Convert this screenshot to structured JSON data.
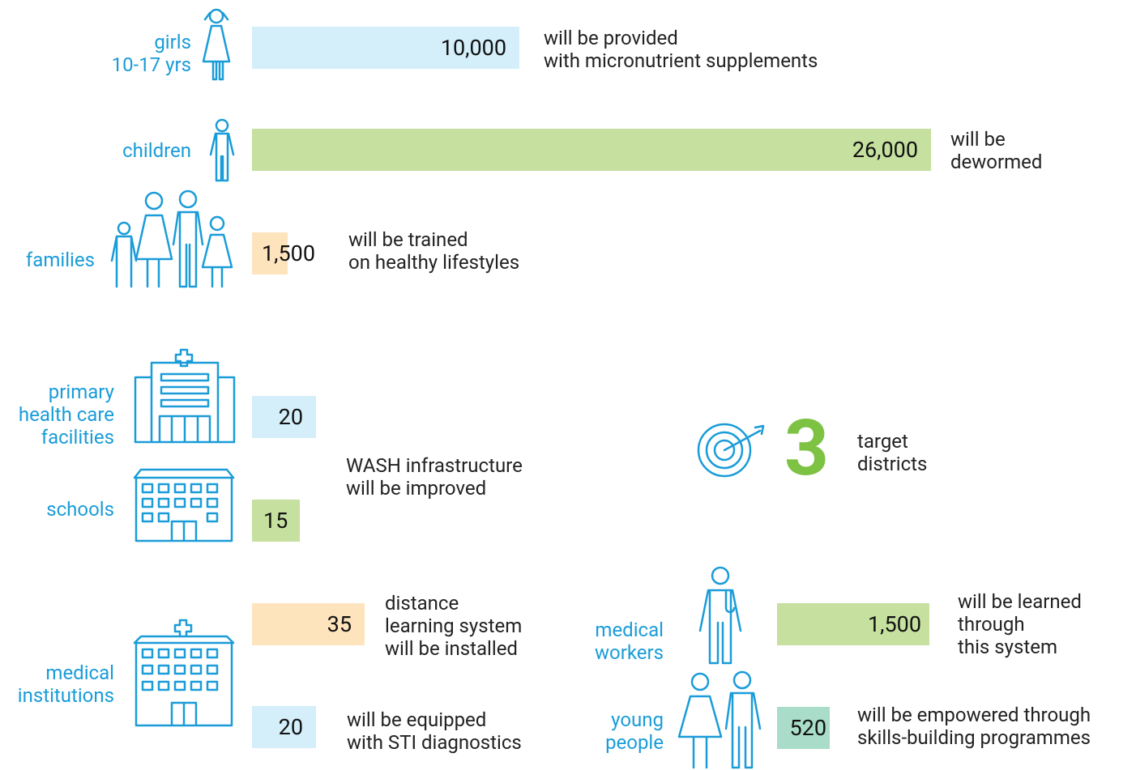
{
  "items": [
    {
      "label": [
        "girls",
        "10-17 yrs"
      ],
      "value": "10,000",
      "text": [
        "will be provided",
        "with micronutrient supplements"
      ]
    },
    {
      "label": [
        "children"
      ],
      "value": "26,000",
      "text": [
        "will be",
        "dewormed"
      ]
    },
    {
      "label": [
        "families"
      ],
      "value": "1,500",
      "text": [
        "will be trained",
        "on healthy lifestyles"
      ]
    },
    {
      "label": [
        "primary",
        "health care",
        "facilities"
      ],
      "value": "20"
    },
    {
      "label": [
        "schools"
      ],
      "value": "15"
    }
  ],
  "wash_text": [
    "WASH infrastructure",
    "will be improved"
  ],
  "districts": {
    "value": "3",
    "text": [
      "target",
      "districts"
    ]
  },
  "medical_institutions": {
    "label": [
      "medical",
      "institutions"
    ],
    "items": [
      {
        "value": "35",
        "text": [
          "distance",
          "learning system",
          "will be installed"
        ]
      },
      {
        "value": "20",
        "text": [
          "will be equipped",
          "with STI diagnostics"
        ]
      }
    ]
  },
  "learners": [
    {
      "label": [
        "medical",
        "workers"
      ],
      "value": "1,500",
      "text": [
        "will be learned",
        "through",
        "this system"
      ]
    },
    {
      "label": [
        "young",
        "people"
      ],
      "value": "520",
      "text": [
        "will be empowered through",
        "skills-building programmes"
      ]
    }
  ]
}
